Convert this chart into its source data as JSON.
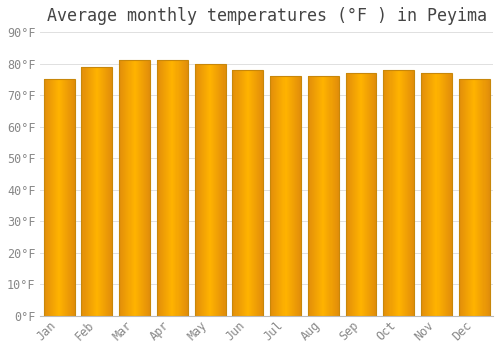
{
  "title": "Average monthly temperatures (°F ) in Peyima",
  "months": [
    "Jan",
    "Feb",
    "Mar",
    "Apr",
    "May",
    "Jun",
    "Jul",
    "Aug",
    "Sep",
    "Oct",
    "Nov",
    "Dec"
  ],
  "values": [
    75,
    79,
    81,
    81,
    80,
    78,
    76,
    76,
    77,
    78,
    77,
    75
  ],
  "bar_color_center": "#FFB300",
  "bar_color_edge": "#E8950A",
  "bar_border_color": "#C8870A",
  "background_color": "#FFFFFF",
  "grid_color": "#E0E0E0",
  "text_color": "#888888",
  "ylim": [
    0,
    90
  ],
  "ytick_step": 10,
  "title_fontsize": 12,
  "tick_fontsize": 8.5,
  "bar_width": 0.82
}
